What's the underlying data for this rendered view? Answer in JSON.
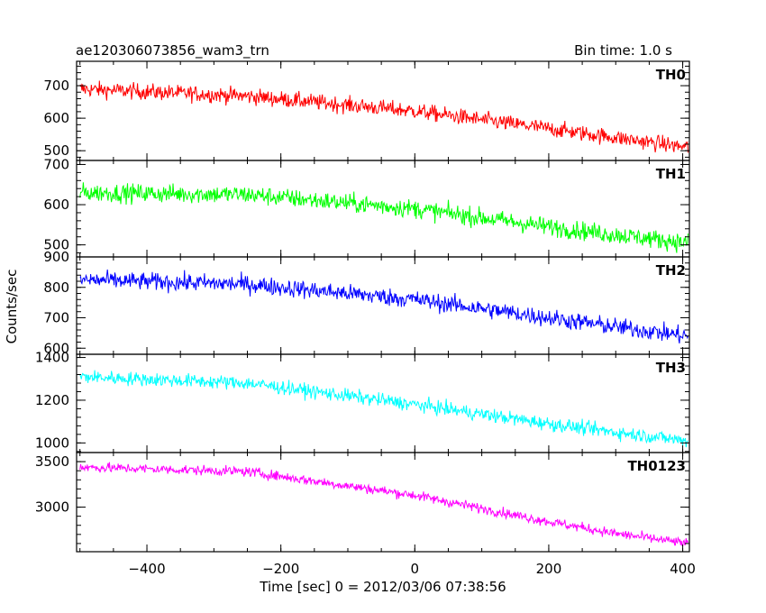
{
  "chart_data": {
    "type": "line",
    "title": "ae120306073856_wam3_trn",
    "bin_time": "Bin time: 1.0 s",
    "xlabel": "Time [sec] 0 = 2012/03/06 07:38:56",
    "ylabel": "Counts/sec",
    "xlim": [
      -505,
      410
    ],
    "x_ticks": [
      -400,
      -200,
      0,
      200,
      400
    ],
    "x_tick_labels": [
      "−400",
      "−200",
      "0",
      "200",
      "400"
    ],
    "grid": false,
    "x_start": -500,
    "x_end": 408,
    "panels": [
      {
        "name": "TH0",
        "color": "#ff0000",
        "ylim": [
          470,
          775
        ],
        "y_ticks": [
          500,
          600,
          700
        ],
        "y_tick_labels": [
          "500",
          "600",
          "700"
        ],
        "trend": [
          [
            -500,
            690
          ],
          [
            -250,
            668
          ],
          [
            0,
            622
          ],
          [
            200,
            568
          ],
          [
            300,
            540
          ],
          [
            408,
            510
          ]
        ],
        "noise": 32
      },
      {
        "name": "TH1",
        "color": "#00ff00",
        "ylim": [
          470,
          710
        ],
        "y_ticks": [
          500,
          600,
          700
        ],
        "y_tick_labels": [
          "500",
          "600",
          "700"
        ],
        "trend": [
          [
            -500,
            630
          ],
          [
            -250,
            625
          ],
          [
            0,
            590
          ],
          [
            200,
            545
          ],
          [
            300,
            525
          ],
          [
            408,
            505
          ]
        ],
        "noise": 30
      },
      {
        "name": "TH2",
        "color": "#0000ff",
        "ylim": [
          580,
          900
        ],
        "y_ticks": [
          600,
          700,
          800,
          900
        ],
        "y_tick_labels": [
          "600",
          "700",
          "800",
          "900"
        ],
        "trend": [
          [
            -500,
            825
          ],
          [
            -250,
            810
          ],
          [
            0,
            760
          ],
          [
            200,
            700
          ],
          [
            300,
            670
          ],
          [
            408,
            640
          ]
        ],
        "noise": 38
      },
      {
        "name": "TH3",
        "color": "#00ffff",
        "ylim": [
          955,
          1415
        ],
        "y_ticks": [
          1000,
          1200,
          1400
        ],
        "y_tick_labels": [
          "1000",
          "1200",
          "1400"
        ],
        "trend": [
          [
            -500,
            1310
          ],
          [
            -250,
            1280
          ],
          [
            0,
            1180
          ],
          [
            200,
            1090
          ],
          [
            300,
            1050
          ],
          [
            408,
            1010
          ]
        ],
        "noise": 42
      },
      {
        "name": "TH0123",
        "color": "#ff00ff",
        "ylim": [
          2510,
          3600
        ],
        "y_ticks": [
          3000,
          3500
        ],
        "y_tick_labels": [
          "3000",
          "3500"
        ],
        "trend": [
          [
            -500,
            3440
          ],
          [
            -250,
            3390
          ],
          [
            0,
            3130
          ],
          [
            200,
            2840
          ],
          [
            300,
            2710
          ],
          [
            408,
            2600
          ]
        ],
        "noise": 70
      }
    ]
  }
}
